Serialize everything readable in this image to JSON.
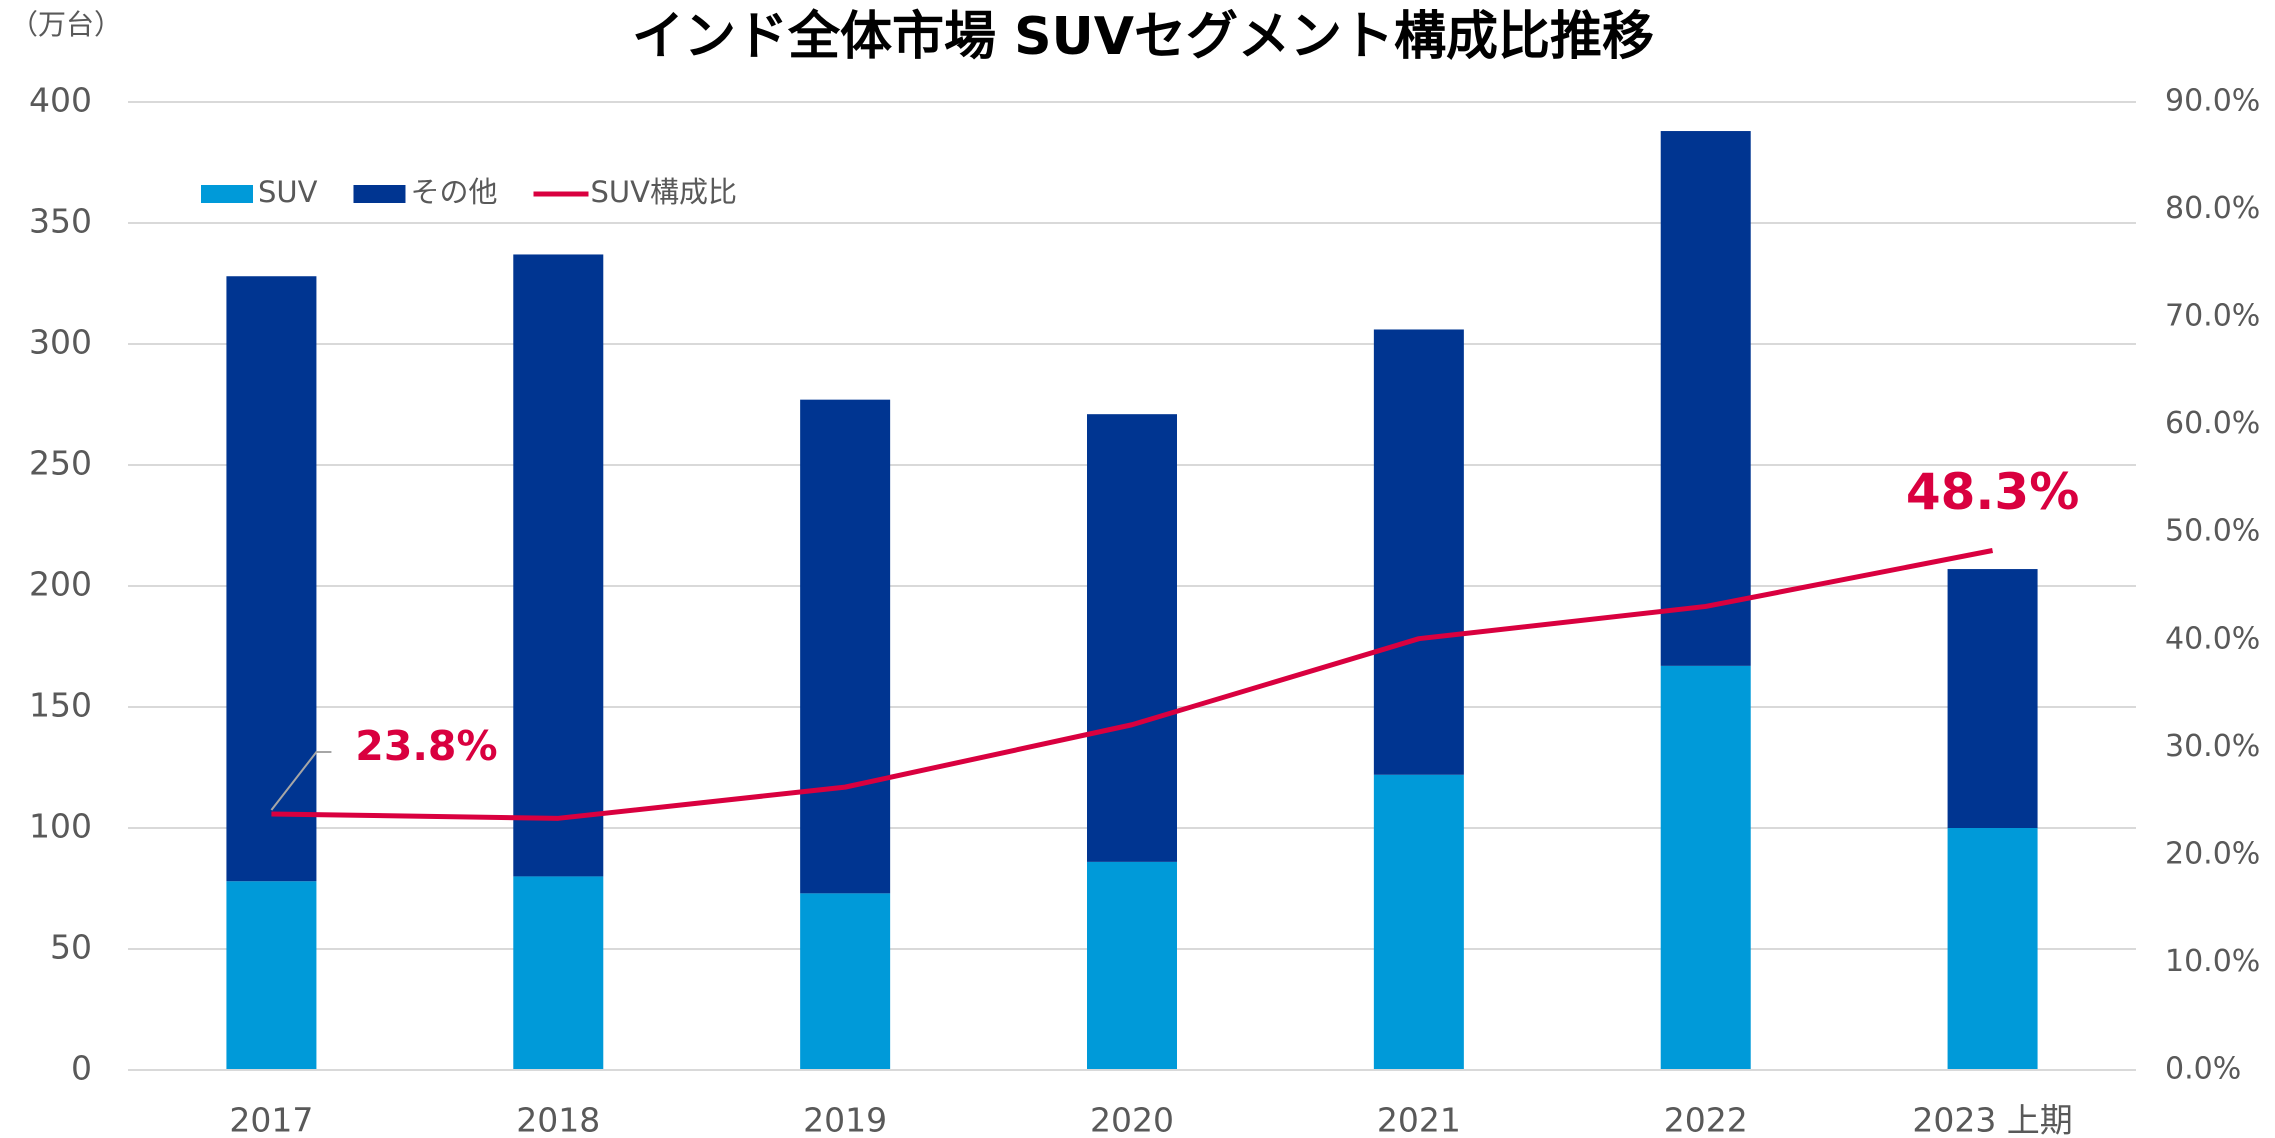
{
  "chart_data": {
    "type": "bar",
    "stacked": true,
    "title": "インド全体市場 SUVセグメント構成比推移",
    "y_unit_label": "（万台）",
    "categories": [
      "2017",
      "2018",
      "2019",
      "2020",
      "2021",
      "2022",
      "2023 上期"
    ],
    "series": [
      {
        "name": "SUV",
        "color": "#009ad9",
        "values": [
          78,
          80,
          73,
          86,
          122,
          167,
          100
        ]
      },
      {
        "name": "その他",
        "color": "#003591",
        "values": [
          250,
          257,
          204,
          185,
          184,
          221,
          107
        ]
      },
      {
        "name": "SUV構成比",
        "type": "line",
        "axis": "y2",
        "color": "#d9003f",
        "values": [
          23.8,
          23.4,
          26.3,
          32.1,
          40.1,
          43.1,
          48.3
        ],
        "value_labels": [
          "23.8%",
          null,
          null,
          null,
          null,
          null,
          "48.3%"
        ]
      }
    ],
    "ylim": [
      0,
      400
    ],
    "yticks": [
      0,
      50,
      100,
      150,
      200,
      250,
      300,
      350,
      400
    ],
    "y2lim": [
      0,
      90
    ],
    "y2ticks": [
      {
        "value": 0,
        "label": "0.0%"
      },
      {
        "value": 10,
        "label": "10.0%"
      },
      {
        "value": 20,
        "label": "20.0%"
      },
      {
        "value": 30,
        "label": "30.0%"
      },
      {
        "value": 40,
        "label": "40.0%"
      },
      {
        "value": 50,
        "label": "50.0%"
      },
      {
        "value": 60,
        "label": "60.0%"
      },
      {
        "value": 70,
        "label": "70.0%"
      },
      {
        "value": 80,
        "label": "80.0%"
      },
      {
        "value": 90,
        "label": "90.0%"
      }
    ],
    "grid": true,
    "legend": "top-left"
  }
}
